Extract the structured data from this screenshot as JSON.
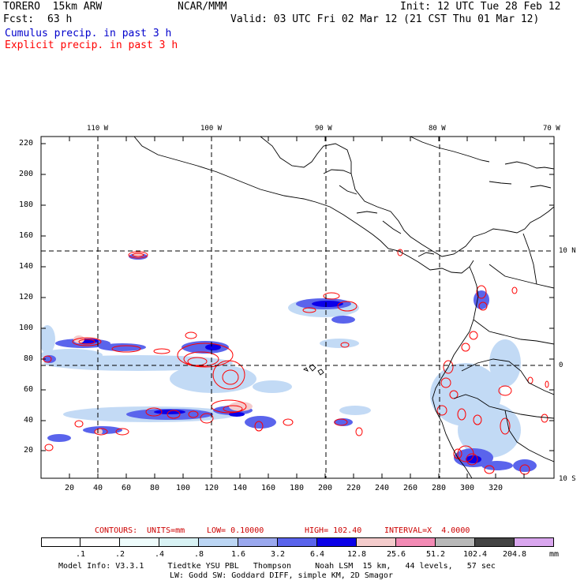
{
  "header": {
    "model": "TORERO  15km ARW",
    "org": "NCAR/MMM",
    "init": "Init: 12 UTC Tue 28 Feb 12",
    "fcst_label": "Fcst:",
    "fcst_value": "63 h",
    "valid": "Valid: 03 UTC Fri 02 Mar 12 (21 CST Thu 01 Mar 12)",
    "line_cumulus": "Cumulus precip. in past 3 h",
    "line_explicit": "Explicit precip. in past 3 h"
  },
  "colors": {
    "cumulus": "#0000cc",
    "explicit": "#ff0000",
    "contour_text": "#cc0000"
  },
  "map": {
    "lon_labels": [
      "110 W",
      "100 W",
      "90 W",
      "80 W",
      "70 W"
    ],
    "lat_labels": [
      "10 N",
      "0",
      "10 S"
    ],
    "x_ticks": [
      "20",
      "40",
      "60",
      "80",
      "100",
      "120",
      "140",
      "160",
      "180",
      "200",
      "220",
      "240",
      "260",
      "280",
      "300",
      "320"
    ],
    "y_ticks": [
      "20",
      "40",
      "60",
      "80",
      "100",
      "120",
      "140",
      "160",
      "180",
      "200",
      "220"
    ]
  },
  "contours": {
    "label": "CONTOURS:",
    "units": "UNITS=mm",
    "low": "LOW= 0.10000",
    "high": "HIGH= 102.40",
    "interval": "INTERVAL=X  4.0000"
  },
  "colorbar": {
    "unit": "mm",
    "labels": [
      ".1",
      ".2",
      ".4",
      ".8",
      "1.6",
      "3.2",
      "6.4",
      "12.8",
      "25.6",
      "51.2",
      "102.4",
      "204.8"
    ],
    "colors": [
      "#ffffff",
      "#ffffff",
      "#eefcfc",
      "#d8f2f4",
      "#bcd6f4",
      "#9aa8ee",
      "#5a64ec",
      "#0b00e8",
      "#f4cccc",
      "#f28ab4",
      "#b8b8b8",
      "#444444",
      "#d9a6ee"
    ]
  },
  "footer": {
    "line1": "Model Info: V3.3.1     Tiedtke YSU PBL   Thompson     Noah LSM  15 km,   44 levels,   57 sec",
    "line2": "LW: Godd SW: Goddard DIFF, simple KM, 2D Smagor"
  }
}
